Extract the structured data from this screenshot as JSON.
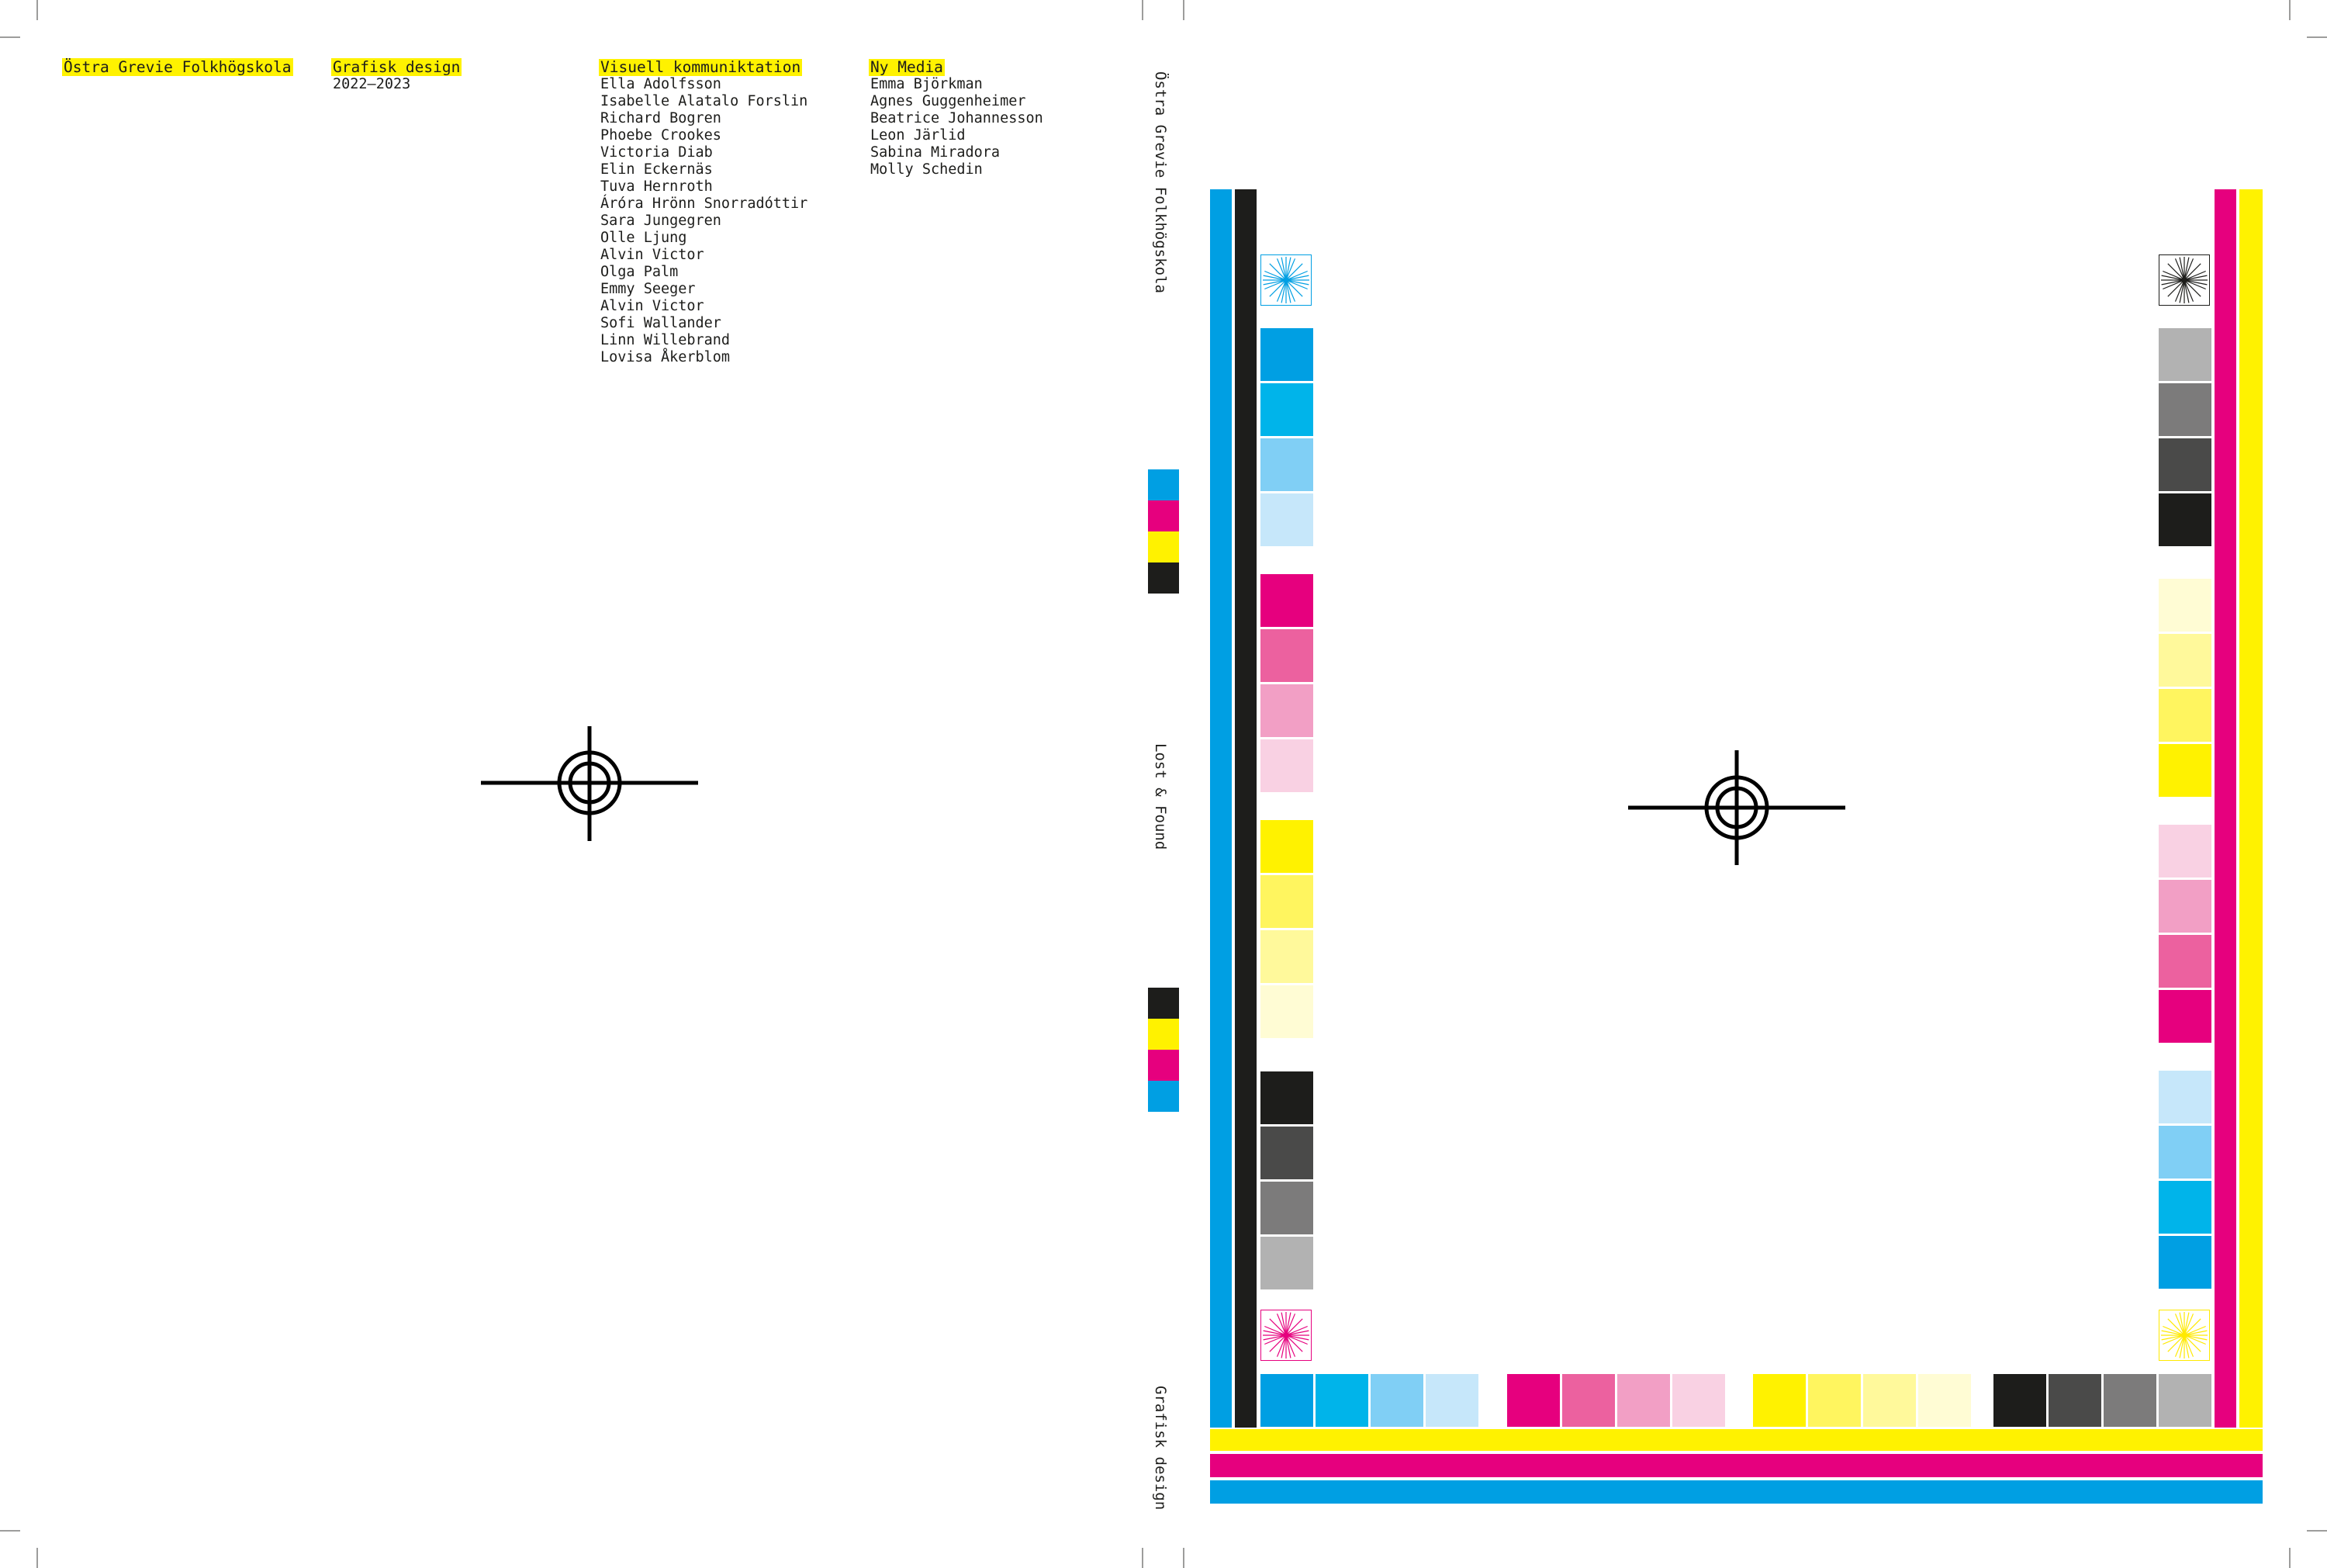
{
  "colors": {
    "cyan": "#009fe3",
    "magenta": "#e6007e",
    "yellow": "#fff200",
    "black": "#1d1d1b",
    "highlight": "#fff200"
  },
  "back_cover": {
    "school": "Östra Grevie Folkhögskola",
    "program_title": "Grafisk design",
    "years": "2022–2023",
    "columns": [
      {
        "heading": "Visuell kommuniktation",
        "names": [
          "Ella Adolfsson",
          "Isabelle Alatalo Forslin",
          "Richard Bogren",
          "Phoebe Crookes",
          "Victoria Diab",
          "Elin Eckernäs",
          "Tuva Hernroth",
          "Áróra Hrönn Snorradóttir",
          "Sara Jungegren",
          "Olle Ljung",
          "Alvin Victor",
          "Olga Palm",
          "Emmy Seeger",
          "Alvin Victor",
          "Sofi Wallander",
          "Linn Willebrand",
          "Lovisa Åkerblom"
        ]
      },
      {
        "heading": "Ny Media",
        "names": [
          "Emma Björkman",
          "Agnes Guggenheimer",
          "Beatrice Johannesson",
          "Leon Järlid",
          "Sabina Miradora",
          "Molly Schedin"
        ]
      }
    ],
    "registration_mark": "crosshair-target-icon"
  },
  "spine": {
    "school": "Östra Grevie Folkhögskola",
    "title": "Lost & Found",
    "program": "Grafisk design",
    "swatches_top": [
      "#009fe3",
      "#e6007e",
      "#fff200",
      "#1d1d1b"
    ],
    "swatches_bottom": [
      "#1d1d1b",
      "#fff200",
      "#e6007e",
      "#009fe3"
    ]
  },
  "front_cover": {
    "registration_mark": "crosshair-target-icon",
    "left_tints": {
      "cyan": [
        "#009fe3",
        "#00b4ea",
        "#80cff5",
        "#c6e7fa"
      ],
      "magenta": [
        "#e6007e",
        "#ec619f",
        "#f29fc5",
        "#f9d1e3"
      ],
      "yellow": [
        "#fff200",
        "#fff55f",
        "#fff99b",
        "#fffcd4"
      ],
      "black": [
        "#1d1d1b",
        "#4a4a49",
        "#7c7b7b",
        "#b2b2b2"
      ]
    },
    "right_tints": {
      "black": [
        "#b2b2b2",
        "#7c7b7b",
        "#4a4a49",
        "#1d1d1b"
      ],
      "yellow": [
        "#fffcd4",
        "#fff99b",
        "#fff55f",
        "#fff200"
      ],
      "magenta": [
        "#f9d1e3",
        "#f29fc5",
        "#ec619f",
        "#e6007e"
      ],
      "cyan": [
        "#c6e7fa",
        "#80cff5",
        "#00b4ea",
        "#009fe3"
      ]
    },
    "bottom_tints": {
      "cyan": [
        "#009fe3",
        "#00b4ea",
        "#80cff5",
        "#c6e7fa"
      ],
      "magenta": [
        "#e6007e",
        "#ec619f",
        "#f29fc5",
        "#f9d1e3"
      ],
      "yellow": [
        "#fff200",
        "#fff55f",
        "#fff99b",
        "#fffcd4"
      ],
      "black": [
        "#1d1d1b",
        "#4a4a49",
        "#7c7b7b",
        "#b2b2b2"
      ]
    },
    "star_targets": [
      "cyan-star-target-icon",
      "black-star-target-icon",
      "magenta-star-target-icon",
      "yellow-star-target-icon"
    ]
  }
}
